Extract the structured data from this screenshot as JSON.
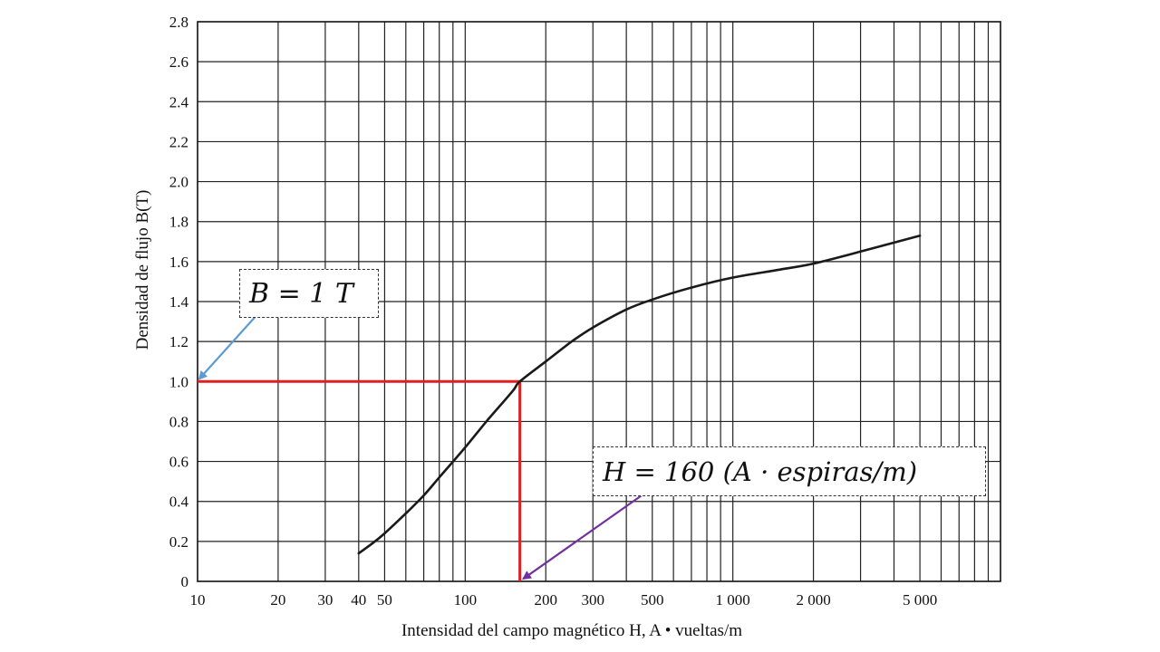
{
  "chart_data": {
    "type": "line",
    "xlabel": "Intensidad del campo magnético H, A • vueltas/m",
    "ylabel": "Densidad de flujo B(T)",
    "x_scale": "log",
    "xlim": [
      10,
      10000
    ],
    "ylim": [
      0,
      2.8
    ],
    "grid": true,
    "x_tick_values": [
      10,
      20,
      30,
      40,
      50,
      100,
      200,
      300,
      500,
      1000,
      2000,
      5000
    ],
    "x_tick_labels": [
      "10",
      "20",
      "30",
      "40",
      "50",
      "100",
      "200",
      "300",
      "500",
      "1 000",
      "2 000",
      "5 000"
    ],
    "y_tick_values": [
      0,
      0.2,
      0.4,
      0.6,
      0.8,
      1.0,
      1.2,
      1.4,
      1.6,
      1.8,
      2.0,
      2.2,
      2.4,
      2.6,
      2.8
    ],
    "y_tick_labels": [
      "0",
      "0.2",
      "0.4",
      "0.6",
      "0.8",
      "1.0",
      "1.2",
      "1.4",
      "1.6",
      "1.8",
      "2.0",
      "2.2",
      "2.4",
      "2.6",
      "2.8"
    ],
    "series": [
      {
        "x": [
          40,
          45,
          50,
          60,
          70,
          80,
          100,
          120,
          150,
          160,
          200,
          250,
          300,
          400,
          500,
          700,
          1000,
          1500,
          2000,
          3000,
          5000
        ],
        "y": [
          0.14,
          0.19,
          0.24,
          0.34,
          0.43,
          0.52,
          0.67,
          0.8,
          0.95,
          1.0,
          1.1,
          1.2,
          1.27,
          1.36,
          1.41,
          1.47,
          1.52,
          1.56,
          1.59,
          1.65,
          1.73
        ],
        "color": "#1a1a1a"
      }
    ],
    "annotations": [
      {
        "text": "B = 1 T",
        "x": 10,
        "y": 1.0,
        "arrow_color": "#5b9bd5"
      },
      {
        "text": "H = 160 (A · espiras/m)",
        "x": 160,
        "y": 0,
        "arrow_color": "#7030a0"
      }
    ],
    "highlight": {
      "x": 160,
      "y": 1.0,
      "color": "#e02020"
    }
  }
}
